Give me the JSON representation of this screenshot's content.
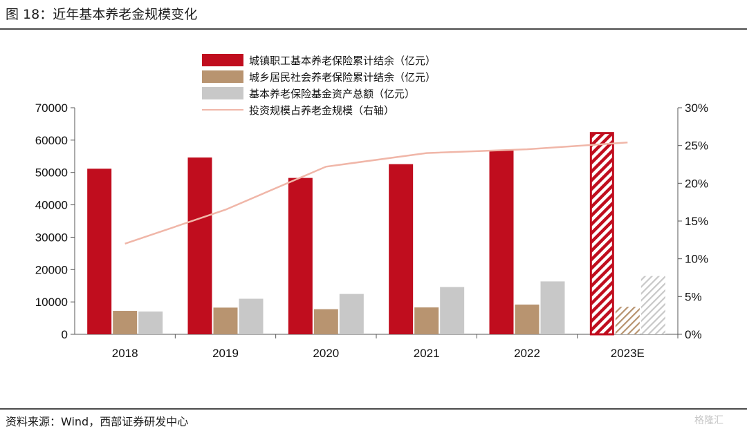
{
  "figure_title": "图 18：近年基本养老金规模变化",
  "source_note": "资料来源：Wind，西部证券研发中心",
  "watermark": "格隆汇",
  "chart_data": {
    "type": "bar",
    "categories": [
      "2018",
      "2019",
      "2020",
      "2021",
      "2022",
      "2023E"
    ],
    "projected_categories": [
      "2023E"
    ],
    "series": [
      {
        "name": "城镇职工基本养老保险累计结余（亿元）",
        "kind": "bar",
        "axis": "left",
        "color": "#c00d1e",
        "values": [
          51168,
          54623,
          48317,
          52574,
          56890,
          62500
        ]
      },
      {
        "name": "城乡居民社会养老保险累计结余（亿元）",
        "kind": "bar",
        "axis": "left",
        "color": "#b89470",
        "values": [
          7250,
          8249,
          7759,
          8304,
          9190,
          8500
        ]
      },
      {
        "name": "基本养老保险基金资产总额（亿元）",
        "kind": "bar",
        "axis": "left",
        "color": "#c8c8c8",
        "values": [
          7033,
          10985,
          12470,
          14605,
          16350,
          18000
        ]
      },
      {
        "name": "投资规模占养老金规模（右轴）",
        "kind": "line",
        "axis": "right",
        "color": "#f0b6a8",
        "values": [
          0.12,
          0.165,
          0.222,
          0.24,
          0.245,
          0.254
        ]
      }
    ],
    "y_left": {
      "min": 0,
      "max": 70000,
      "ticks": [
        "0",
        "10000",
        "20000",
        "30000",
        "40000",
        "50000",
        "60000",
        "70000"
      ]
    },
    "y_right": {
      "min": 0,
      "max": 0.3,
      "ticks": [
        "0%",
        "5%",
        "10%",
        "15%",
        "20%",
        "25%",
        "30%"
      ]
    },
    "legend_position": "top-center",
    "grid": false
  }
}
